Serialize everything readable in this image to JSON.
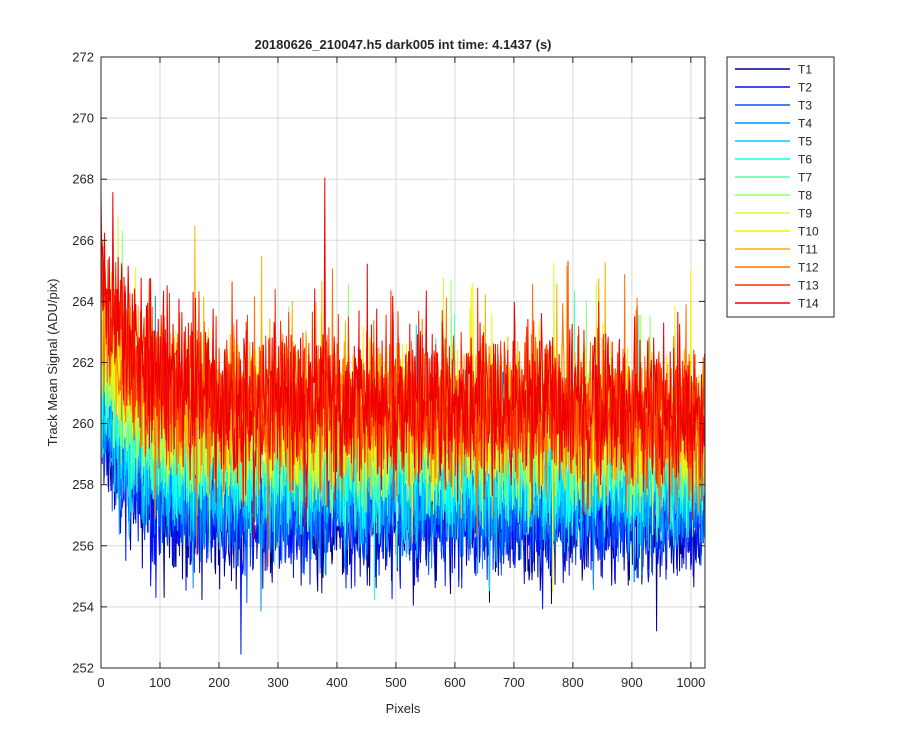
{
  "chart_data": {
    "type": "line",
    "title": "20180626_210047.h5  dark005   int time: 4.1437 (s)",
    "xlabel": "Pixels",
    "ylabel": "Track Mean Signal (ADU/pix)",
    "xlim": [
      0,
      1024
    ],
    "ylim": [
      252,
      272
    ],
    "x_ticks": [
      0,
      100,
      200,
      300,
      400,
      500,
      600,
      700,
      800,
      900,
      1000
    ],
    "y_ticks": [
      252,
      254,
      256,
      258,
      260,
      262,
      264,
      266,
      268,
      270,
      272
    ],
    "grid": true,
    "legend_position": "outside-top-right",
    "n_points": 1024,
    "series": [
      {
        "name": "T1",
        "color": "#00008f",
        "base": 256.8,
        "start": 260.0,
        "noise": 0.9,
        "drift": -0.2
      },
      {
        "name": "T2",
        "color": "#0010ff",
        "base": 256.9,
        "start": 260.3,
        "noise": 0.9,
        "drift": -0.2
      },
      {
        "name": "T3",
        "color": "#0050ff",
        "base": 257.3,
        "start": 260.6,
        "noise": 0.9,
        "drift": -0.2
      },
      {
        "name": "T4",
        "color": "#0090ff",
        "base": 257.7,
        "start": 261.0,
        "noise": 0.9,
        "drift": -0.2
      },
      {
        "name": "T5",
        "color": "#00cfff",
        "base": 258.2,
        "start": 261.3,
        "noise": 1.0,
        "drift": -0.2
      },
      {
        "name": "T6",
        "color": "#10ffef",
        "base": 258.8,
        "start": 261.8,
        "noise": 1.0,
        "drift": -0.3
      },
      {
        "name": "T7",
        "color": "#50ffaf",
        "base": 259.3,
        "start": 262.2,
        "noise": 1.0,
        "drift": -0.3
      },
      {
        "name": "T8",
        "color": "#90ff6f",
        "base": 259.7,
        "start": 262.6,
        "noise": 1.0,
        "drift": -0.3
      },
      {
        "name": "T9",
        "color": "#cfff30",
        "base": 260.1,
        "start": 263.0,
        "noise": 1.1,
        "drift": -0.4
      },
      {
        "name": "T10",
        "color": "#ffef00",
        "base": 260.4,
        "start": 263.4,
        "noise": 1.1,
        "drift": -0.4
      },
      {
        "name": "T11",
        "color": "#ffaf00",
        "base": 260.5,
        "start": 263.8,
        "noise": 1.1,
        "drift": -0.5
      },
      {
        "name": "T12",
        "color": "#ff7000",
        "base": 260.7,
        "start": 264.3,
        "noise": 1.2,
        "drift": -0.6
      },
      {
        "name": "T13",
        "color": "#ff3000",
        "base": 260.9,
        "start": 264.8,
        "noise": 1.2,
        "drift": -0.7
      },
      {
        "name": "T14",
        "color": "#ef0000",
        "base": 261.1,
        "start": 265.5,
        "noise": 1.3,
        "drift": -0.8
      }
    ]
  }
}
